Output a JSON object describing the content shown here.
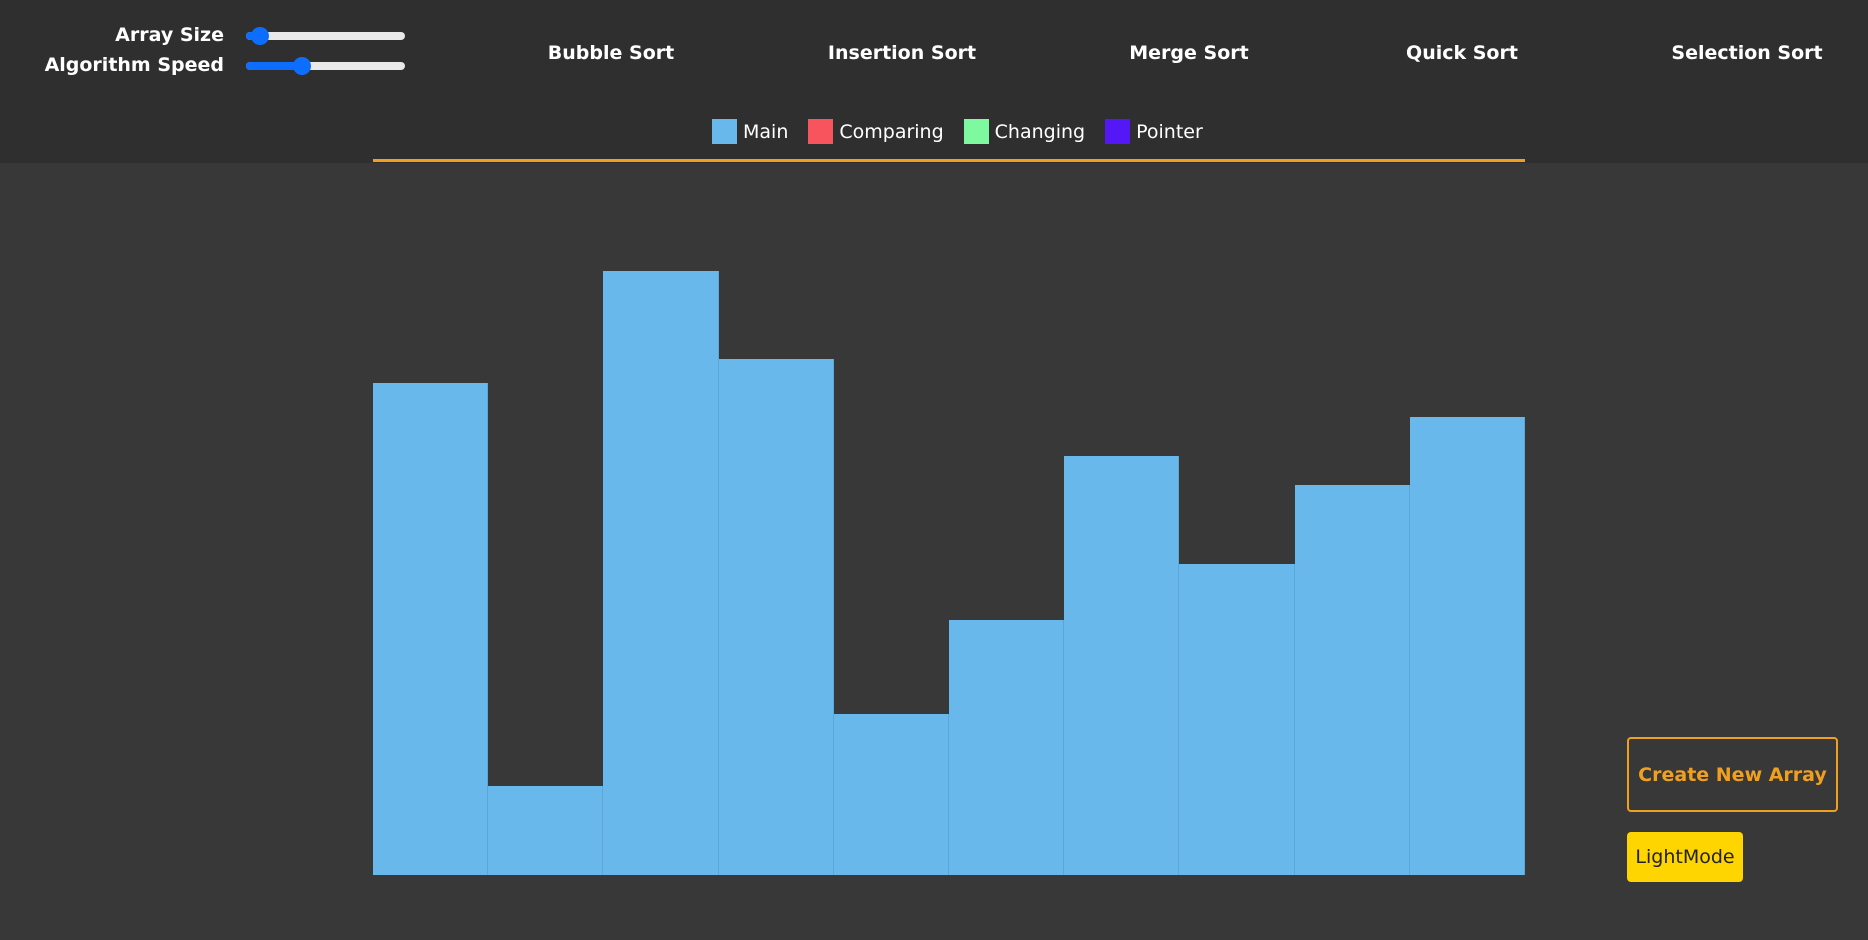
{
  "controls": {
    "array_size": {
      "label": "Array Size",
      "value_fraction": 0.09
    },
    "algorithm_speed": {
      "label": "Algorithm Speed",
      "value_fraction": 0.35
    }
  },
  "algorithms": [
    {
      "label": "Bubble Sort"
    },
    {
      "label": "Insertion Sort"
    },
    {
      "label": "Merge Sort"
    },
    {
      "label": "Quick Sort"
    },
    {
      "label": "Selection Sort"
    }
  ],
  "legend": [
    {
      "label": "Main",
      "color": "#69b8eb"
    },
    {
      "label": "Comparing",
      "color": "#f7545d"
    },
    {
      "label": "Changing",
      "color": "#7ff9a0"
    },
    {
      "label": "Pointer",
      "color": "#5318f5"
    }
  ],
  "chart_data": {
    "type": "bar",
    "max_value": 100,
    "values": [
      81.5,
      14.8,
      100,
      85.4,
      26.6,
      42.3,
      69.3,
      51.5,
      64.5,
      75.8
    ],
    "bar_color": "#69b8eb"
  },
  "actions": {
    "create_new_array": "Create New Array",
    "light_mode": "LightMode"
  },
  "theme": {
    "accent": "#f0a020",
    "slider_color": "#0d6efd",
    "light_mode_button": "#ffd500"
  }
}
